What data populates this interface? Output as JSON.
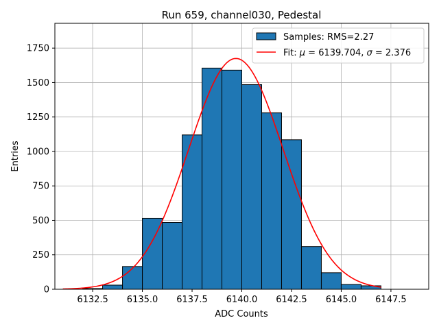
{
  "chart_data": {
    "type": "bar",
    "title": "Run 659, channel030, Pedestal",
    "xlabel": "ADC Counts",
    "ylabel": "Entries",
    "xlim": [
      6130.6,
      6149.4
    ],
    "ylim": [
      0,
      1930
    ],
    "xticks": [
      6132.5,
      6135.0,
      6137.5,
      6140.0,
      6142.5,
      6145.0,
      6147.5
    ],
    "xtick_labels": [
      "6132.5",
      "6135.0",
      "6137.5",
      "6140.0",
      "6142.5",
      "6145.0",
      "6147.5"
    ],
    "yticks": [
      0,
      250,
      500,
      750,
      1000,
      1250,
      1500,
      1750
    ],
    "ytick_labels": [
      "0",
      "250",
      "500",
      "750",
      "1000",
      "1250",
      "1500",
      "1750"
    ],
    "grid": true,
    "legend_position": "top-right",
    "histogram": {
      "name": "Samples: RMS=2.27",
      "color": "#1f77b4",
      "edgecolor": "#000000",
      "bin_edges": [
        6132,
        6133,
        6134,
        6135,
        6136,
        6137,
        6138,
        6139,
        6140,
        6141,
        6142,
        6143,
        6144,
        6145,
        6146,
        6147
      ],
      "values": [
        5,
        30,
        165,
        515,
        485,
        1120,
        1605,
        1590,
        1485,
        1280,
        1085,
        310,
        120,
        35,
        25
      ]
    },
    "fit": {
      "name": "Fit: $\\mu$ = 6139.704, $\\sigma$ = 2.376",
      "display_parts": [
        "Fit: ",
        "μ",
        " = 6139.704, ",
        "σ",
        " = 2.376"
      ],
      "color": "#ff0000",
      "mu": 6139.704,
      "sigma": 2.376,
      "amplitude": 1675,
      "x_range": [
        6131,
        6147
      ]
    }
  }
}
